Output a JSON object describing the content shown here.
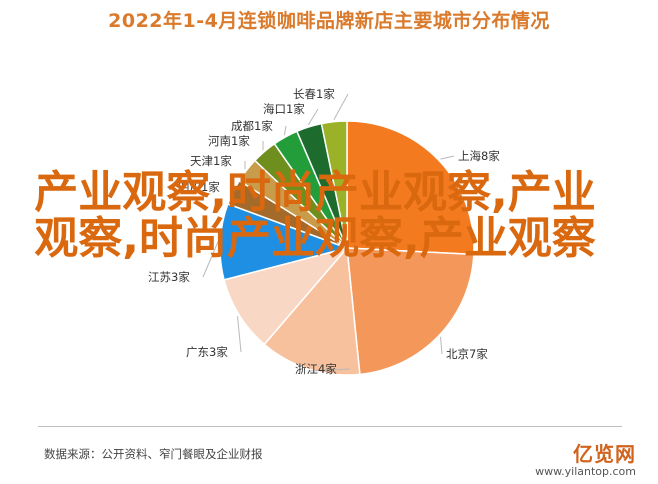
{
  "title": "2022年1-4月连锁咖啡品牌新店主要城市分布情况",
  "chart_data": {
    "type": "pie",
    "slices": [
      {
        "label": "上海8家",
        "value": 8,
        "color": "#f37a1f"
      },
      {
        "label": "北京7家",
        "value": 7,
        "color": "#f4975b"
      },
      {
        "label": "浙江4家",
        "value": 4,
        "color": "#f8c19e"
      },
      {
        "label": "广东3家",
        "value": 3,
        "color": "#f8d7c4"
      },
      {
        "label": "江苏3家",
        "value": 3,
        "color": "#1f8fe3"
      },
      {
        "label": "四川1家",
        "value": 1,
        "color": "#a46a2a"
      },
      {
        "label": "天津1家",
        "value": 1,
        "color": "#c89c4a"
      },
      {
        "label": "河南1家",
        "value": 1,
        "color": "#6e8e1e"
      },
      {
        "label": "成都1家",
        "value": 1,
        "color": "#239c3a"
      },
      {
        "label": "海口1家",
        "value": 1,
        "color": "#1e6b2e"
      },
      {
        "label": "长春1家",
        "value": 1,
        "color": "#9ab128"
      }
    ]
  },
  "overlay_text": "产业观察,时尚产业观察,产业观察,时尚产业观察,产业观察",
  "footer": {
    "source": "数据来源：公开资料、窄门餐眼及企业财报",
    "logo": "亿览网",
    "site": "www.yilantop.com"
  }
}
